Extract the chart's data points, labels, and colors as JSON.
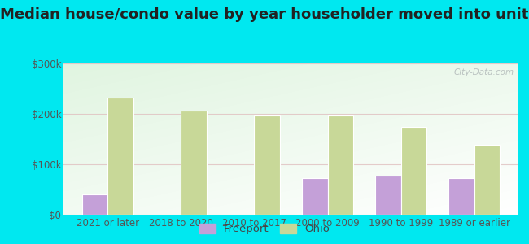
{
  "title": "Median house/condo value by year householder moved into unit",
  "categories": [
    "2021 or later",
    "2018 to 2020",
    "2010 to 2017",
    "2000 to 2009",
    "1990 to 1999",
    "1989 or earlier"
  ],
  "freeport_values": [
    40000,
    0,
    0,
    72000,
    78000,
    72000
  ],
  "ohio_values": [
    232000,
    207000,
    196000,
    196000,
    174000,
    138000
  ],
  "freeport_color": "#c4a0d8",
  "ohio_color": "#c8d898",
  "bar_width": 0.35,
  "ylim": [
    0,
    300000
  ],
  "yticks": [
    0,
    100000,
    200000,
    300000
  ],
  "ytick_labels": [
    "$0",
    "$100k",
    "$200k",
    "$300k"
  ],
  "legend_labels": [
    "Freeport",
    "Ohio"
  ],
  "background_outer": "#00e8f0",
  "watermark": "City-Data.com",
  "title_fontsize": 13,
  "tick_fontsize": 8.5,
  "legend_fontsize": 9.5
}
